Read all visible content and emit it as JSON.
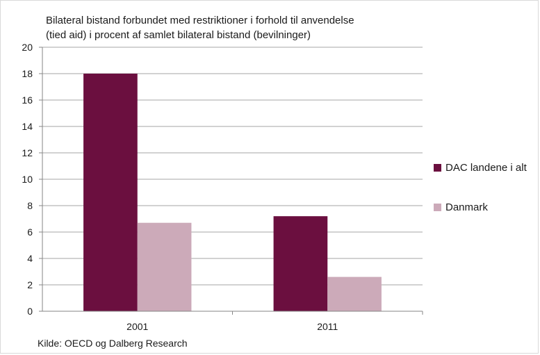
{
  "chart_data": {
    "type": "bar",
    "title_lines": [
      "Bilateral bistand forbundet med restriktioner  i forhold til anvendelse",
      "(tied aid) i procent af samlet bilateral bistand (bevilninger)"
    ],
    "categories": [
      "2001",
      "2011"
    ],
    "series": [
      {
        "name": "DAC landene  i alt",
        "values": [
          18.0,
          7.2
        ],
        "color": "#6b0f3f"
      },
      {
        "name": "Danmark",
        "values": [
          6.7,
          2.6
        ],
        "color": "#ccaab9"
      }
    ],
    "ylim": [
      0,
      20
    ],
    "yticks": [
      "0",
      "2",
      "4",
      "6",
      "8",
      "10",
      "12",
      "14",
      "16",
      "18",
      "20"
    ],
    "grid": true,
    "legend_position": "right",
    "source": "Kilde: OECD og Dalberg Research"
  }
}
